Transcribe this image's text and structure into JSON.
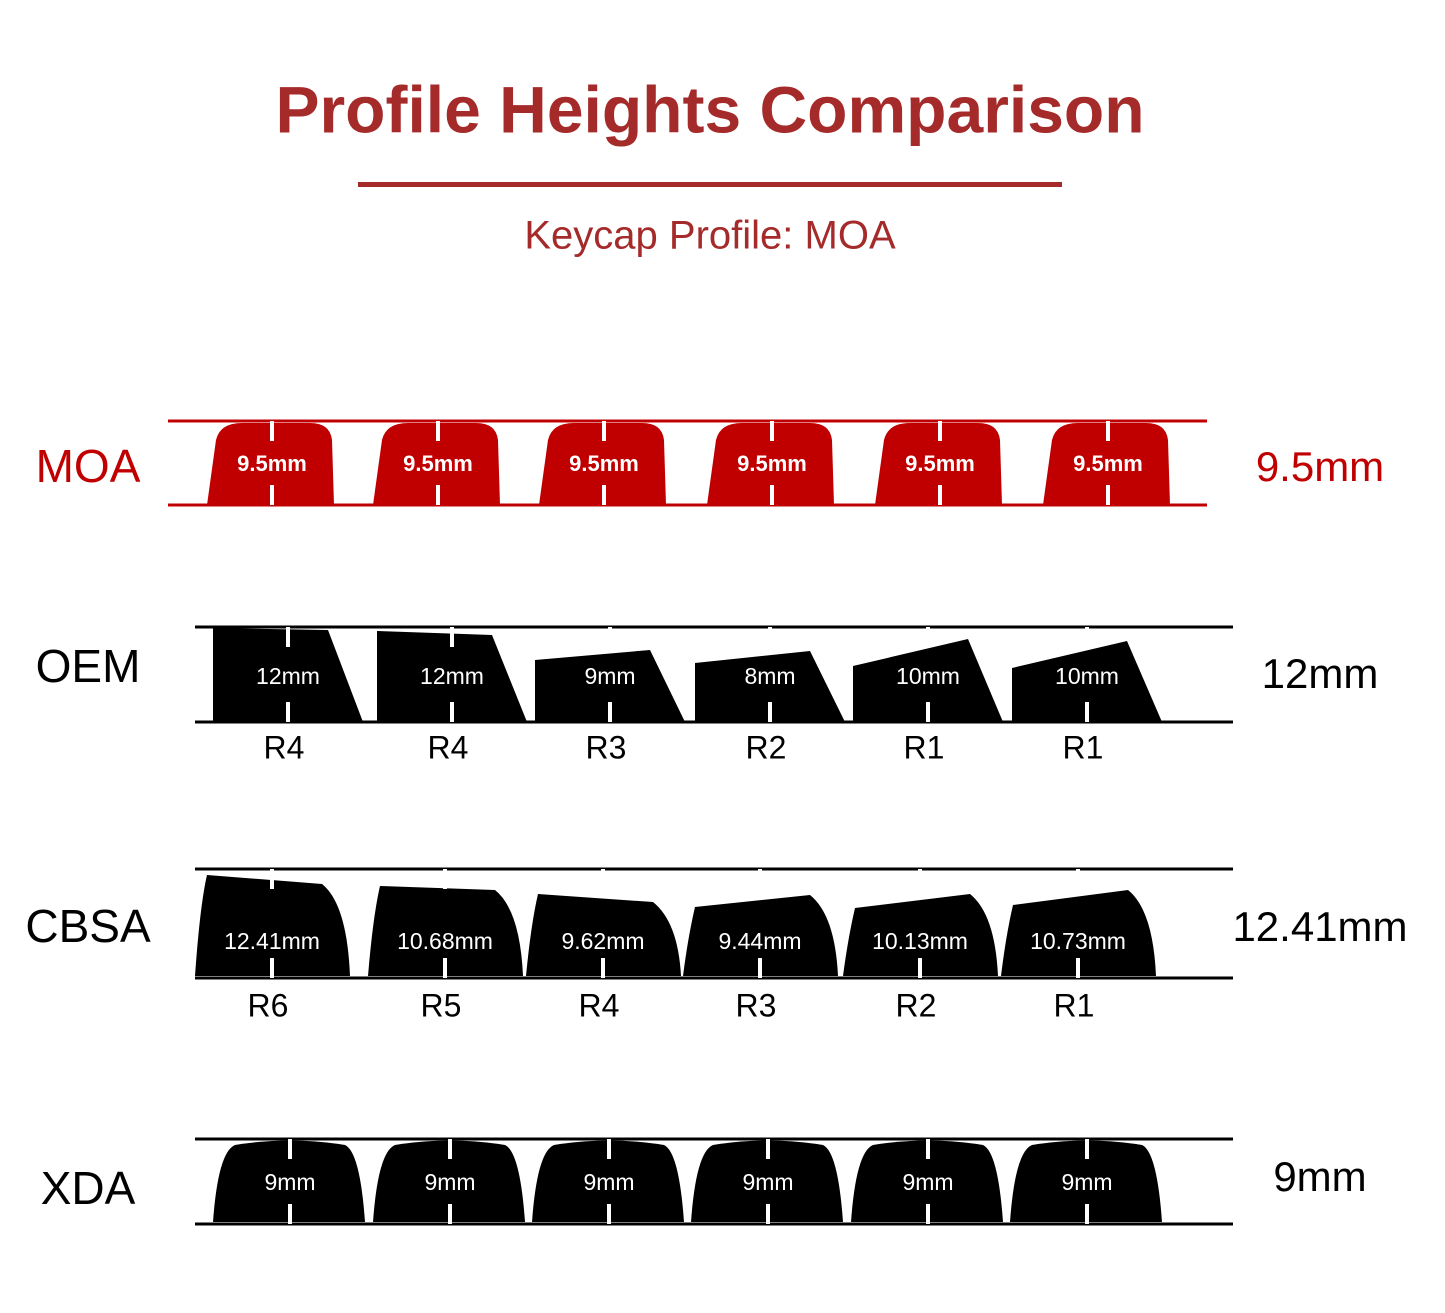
{
  "header": {
    "title": "Profile Heights Comparison",
    "subtitle": "Keycap Profile: MOA"
  },
  "profiles": [
    {
      "name": "MOA",
      "height": "9.5mm",
      "keys": [
        {
          "label": "9.5mm"
        },
        {
          "label": "9.5mm"
        },
        {
          "label": "9.5mm"
        },
        {
          "label": "9.5mm"
        },
        {
          "label": "9.5mm"
        },
        {
          "label": "9.5mm"
        }
      ]
    },
    {
      "name": "OEM",
      "height": "12mm",
      "keys": [
        {
          "label": "12mm",
          "row": "R4"
        },
        {
          "label": "12mm",
          "row": "R4"
        },
        {
          "label": "9mm",
          "row": "R3"
        },
        {
          "label": "8mm",
          "row": "R2"
        },
        {
          "label": "10mm",
          "row": "R1"
        },
        {
          "label": "10mm",
          "row": "R1"
        }
      ]
    },
    {
      "name": "CBSA",
      "height": "12.41mm",
      "keys": [
        {
          "label": "12.41mm",
          "row": "R6"
        },
        {
          "label": "10.68mm",
          "row": "R5"
        },
        {
          "label": "9.62mm",
          "row": "R4"
        },
        {
          "label": "9.44mm",
          "row": "R3"
        },
        {
          "label": "10.13mm",
          "row": "R2"
        },
        {
          "label": "10.73mm",
          "row": "R1"
        }
      ]
    },
    {
      "name": "XDA",
      "height": "9mm",
      "keys": [
        {
          "label": "9mm"
        },
        {
          "label": "9mm"
        },
        {
          "label": "9mm"
        },
        {
          "label": "9mm"
        },
        {
          "label": "9mm"
        },
        {
          "label": "9mm"
        }
      ]
    }
  ]
}
